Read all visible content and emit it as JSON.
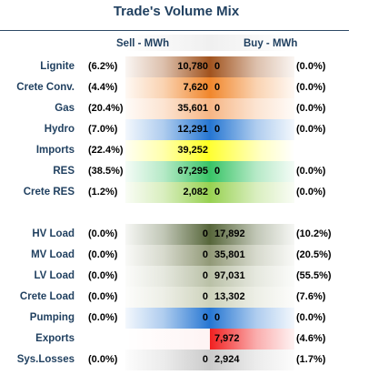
{
  "chart_data": {
    "type": "table",
    "title": "Trade's Volume Mix",
    "columns": [
      "Sell - MWh",
      "Buy - MWh"
    ],
    "rows": [
      {
        "label": "Lignite",
        "sell_pct": "(6.2%)",
        "sell": "10,780",
        "buy": "0",
        "buy_pct": "(0.0%)",
        "sell_value": 10780,
        "buy_value": 0,
        "color": "#9c4a12"
      },
      {
        "label": "Crete Conv.",
        "sell_pct": "(4.4%)",
        "sell": "7,620",
        "buy": "0",
        "buy_pct": "(0.0%)",
        "sell_value": 7620,
        "buy_value": 0,
        "color": "#f08020"
      },
      {
        "label": "Gas",
        "sell_pct": "(20.4%)",
        "sell": "35,601",
        "buy": "0",
        "buy_pct": "(0.0%)",
        "sell_value": 35601,
        "buy_value": 0,
        "color": "#f6b27e"
      },
      {
        "label": "Hydro",
        "sell_pct": "(7.0%)",
        "sell": "12,291",
        "buy": "0",
        "buy_pct": "(0.0%)",
        "sell_value": 12291,
        "buy_value": 0,
        "color": "#1a6fd0"
      },
      {
        "label": "Imports",
        "sell_pct": "(22.4%)",
        "sell": "39,252",
        "buy": "",
        "buy_pct": "",
        "sell_value": 39252,
        "buy_value": null,
        "color": "#ffff10"
      },
      {
        "label": "RES",
        "sell_pct": "(38.5%)",
        "sell": "67,295",
        "buy": "0",
        "buy_pct": "(0.0%)",
        "sell_value": 67295,
        "buy_value": 0,
        "color": "#2ec15e"
      },
      {
        "label": "Crete RES",
        "sell_pct": "(1.2%)",
        "sell": "2,082",
        "buy": "0",
        "buy_pct": "(0.0%)",
        "sell_value": 2082,
        "buy_value": 0,
        "color": "#92cf48"
      },
      {
        "label": "HV Load",
        "sell_pct": "(0.0%)",
        "sell": "0",
        "buy": "17,892",
        "buy_pct": "(10.2%)",
        "sell_value": 0,
        "buy_value": 17892,
        "color": "#4e5e30"
      },
      {
        "label": "MV Load",
        "sell_pct": "(0.0%)",
        "sell": "0",
        "buy": "35,801",
        "buy_pct": "(20.5%)",
        "sell_value": 0,
        "buy_value": 35801,
        "color": "#8c9470"
      },
      {
        "label": "LV Load",
        "sell_pct": "(0.0%)",
        "sell": "0",
        "buy": "97,031",
        "buy_pct": "(55.5%)",
        "sell_value": 0,
        "buy_value": 97031,
        "color": "#b6bda2"
      },
      {
        "label": "Crete Load",
        "sell_pct": "(0.0%)",
        "sell": "0",
        "buy": "13,302",
        "buy_pct": "(7.6%)",
        "sell_value": 0,
        "buy_value": 13302,
        "color": "#cbd0b8"
      },
      {
        "label": "Pumping",
        "sell_pct": "(0.0%)",
        "sell": "0",
        "buy": "0",
        "buy_pct": "(0.0%)",
        "sell_value": 0,
        "buy_value": 0,
        "color": "#1a6fd0"
      },
      {
        "label": "Exports",
        "sell_pct": "",
        "sell": "",
        "buy": "7,972",
        "buy_pct": "(4.6%)",
        "sell_value": null,
        "buy_value": 7972,
        "color": "#f01414"
      },
      {
        "label": "Sys.Losses",
        "sell_pct": "(0.0%)",
        "sell": "0",
        "buy": "2,924",
        "buy_pct": "(1.7%)",
        "sell_value": 0,
        "buy_value": 2924,
        "color": "#c8c8c8"
      }
    ]
  }
}
